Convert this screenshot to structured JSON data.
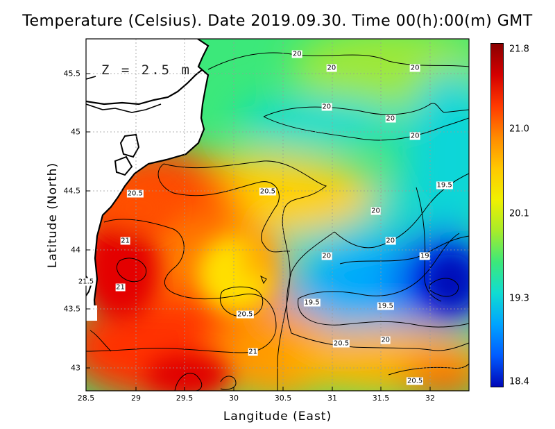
{
  "chart_data": {
    "type": "heatmap",
    "title": "Temperature (Celsius). Date 2019.09.30. Time 00(h):00(m)  GMT",
    "xlabel": "Langitude (East)",
    "ylabel": "Latitude (North)",
    "annotation": "Z = 2.5 m",
    "xlim": [
      28.5,
      32.4
    ],
    "ylim": [
      42.8,
      45.8
    ],
    "x_ticks": [
      "28.5",
      "29",
      "29.5",
      "30",
      "30.5",
      "31",
      "31.5",
      "32"
    ],
    "y_ticks": [
      "43",
      "43.5",
      "44",
      "44.5",
      "45",
      "45.5"
    ],
    "grid": true,
    "colorbar": {
      "min": 18.4,
      "max": 21.8,
      "ticks": [
        "21.8",
        "21.0",
        "20.1",
        "19.3",
        "18.4"
      ],
      "colors": [
        "#8a0000",
        "#d40000",
        "#ff3a00",
        "#ff8a00",
        "#ffc800",
        "#f0f000",
        "#a8ec2a",
        "#3ce87a",
        "#10dcd2",
        "#00a4ff",
        "#005cff",
        "#0008b8"
      ]
    },
    "contour_labels": [
      {
        "text": "20",
        "lon": 30.65,
        "lat": 45.67
      },
      {
        "text": "20",
        "lon": 31.0,
        "lat": 45.55
      },
      {
        "text": "20",
        "lon": 31.85,
        "lat": 45.55
      },
      {
        "text": "20",
        "lon": 30.95,
        "lat": 45.22
      },
      {
        "text": "20",
        "lon": 31.6,
        "lat": 45.12
      },
      {
        "text": "20",
        "lon": 31.85,
        "lat": 44.97
      },
      {
        "text": "20.5",
        "lon": 29.0,
        "lat": 44.48
      },
      {
        "text": "20.5",
        "lon": 30.35,
        "lat": 44.5
      },
      {
        "text": "19.5",
        "lon": 32.15,
        "lat": 44.55
      },
      {
        "text": "20",
        "lon": 31.45,
        "lat": 44.33
      },
      {
        "text": "21",
        "lon": 28.9,
        "lat": 44.08
      },
      {
        "text": "20",
        "lon": 31.6,
        "lat": 44.08
      },
      {
        "text": "20",
        "lon": 30.95,
        "lat": 43.95
      },
      {
        "text": "19",
        "lon": 31.95,
        "lat": 43.95
      },
      {
        "text": "21.5",
        "lon": 28.5,
        "lat": 43.73
      },
      {
        "text": "21",
        "lon": 28.85,
        "lat": 43.68
      },
      {
        "text": "19.5",
        "lon": 30.8,
        "lat": 43.55
      },
      {
        "text": "19.5",
        "lon": 31.55,
        "lat": 43.52
      },
      {
        "text": "20.5",
        "lon": 30.12,
        "lat": 43.45
      },
      {
        "text": "20",
        "lon": 31.55,
        "lat": 43.23
      },
      {
        "text": "20.5",
        "lon": 31.1,
        "lat": 43.2
      },
      {
        "text": "21",
        "lon": 30.2,
        "lat": 43.13
      },
      {
        "text": "20.5",
        "lon": 31.85,
        "lat": 42.88
      }
    ]
  }
}
